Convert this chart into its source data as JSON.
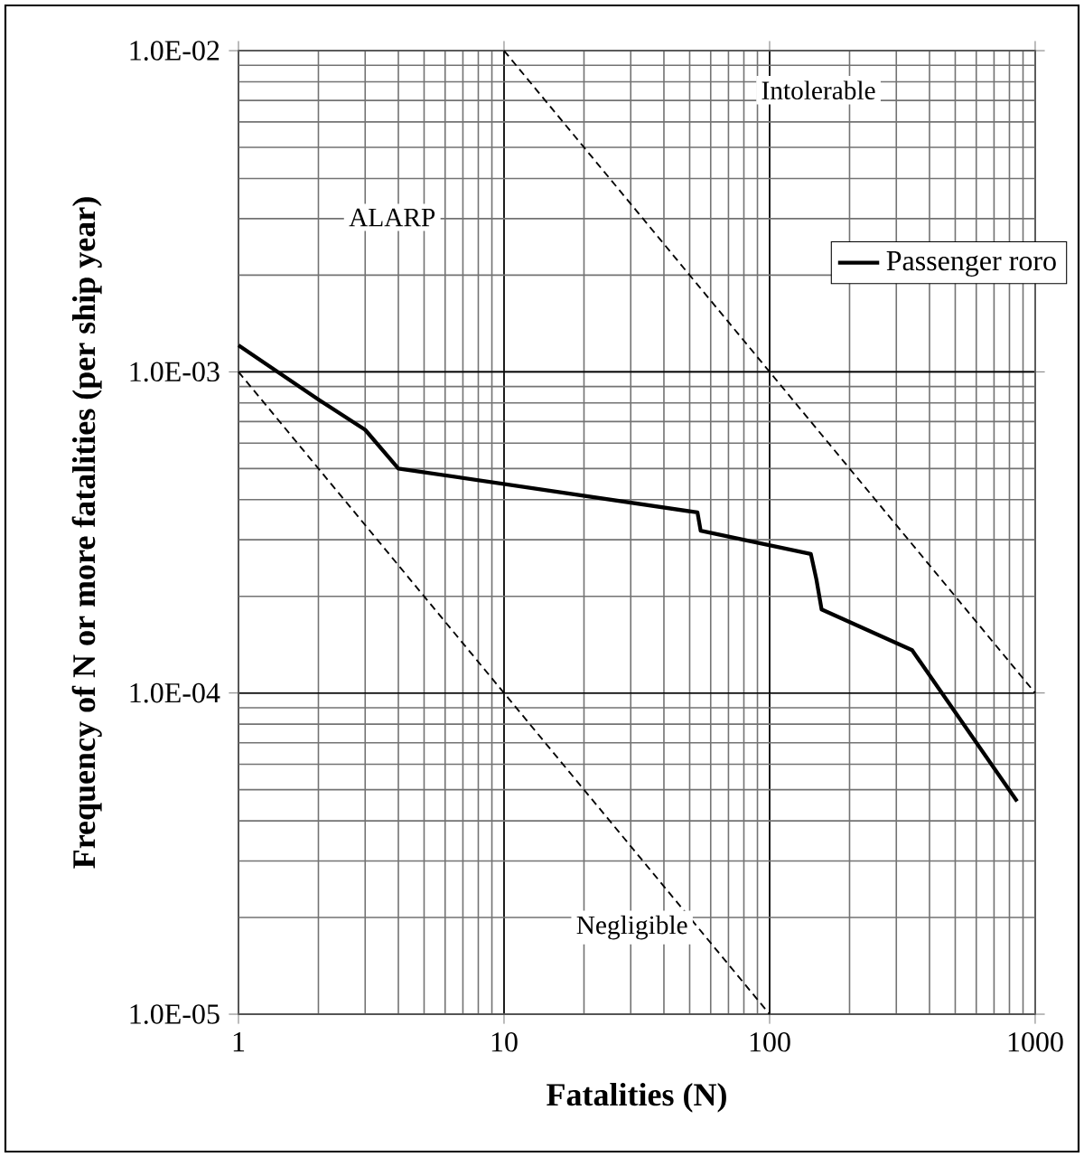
{
  "chart_data": {
    "type": "line",
    "xlabel": "Fatalities (N)",
    "ylabel": "Frequency of N or more fatalities (per ship year)",
    "log": "xy",
    "grid": true,
    "legend": "right",
    "xlim": [
      1,
      1000
    ],
    "ylim": [
      1e-05,
      0.01
    ],
    "xticks": [
      1,
      10,
      100,
      1000
    ],
    "yticks": [
      {
        "value": 1e-05,
        "label": "1.0E-05"
      },
      {
        "value": 0.0001,
        "label": "1.0E-04"
      },
      {
        "value": 0.001,
        "label": "1.0E-03"
      },
      {
        "value": 0.01,
        "label": "1.0E-02"
      }
    ],
    "series": [
      {
        "name": "Passenger roro",
        "color": "#000000",
        "line_style": "solid",
        "x": [
          1,
          2,
          3,
          4,
          53.5,
          55,
          143,
          150,
          157,
          344,
          855
        ],
        "values": [
          0.00121,
          0.00082,
          0.00066,
          0.0005,
          0.000365,
          0.00032,
          0.000271,
          0.000226,
          0.000182,
          0.000136,
          4.6e-05
        ]
      },
      {
        "color": "#000000",
        "line_style": "dashed",
        "x": [
          10,
          1000
        ],
        "values": [
          0.01,
          0.0001
        ]
      },
      {
        "color": "#000000",
        "line_style": "dashed",
        "x": [
          1,
          100
        ],
        "values": [
          0.001,
          1e-05
        ]
      }
    ],
    "annotations": [
      "Intolerable",
      "ALARP",
      "Negligible"
    ]
  }
}
